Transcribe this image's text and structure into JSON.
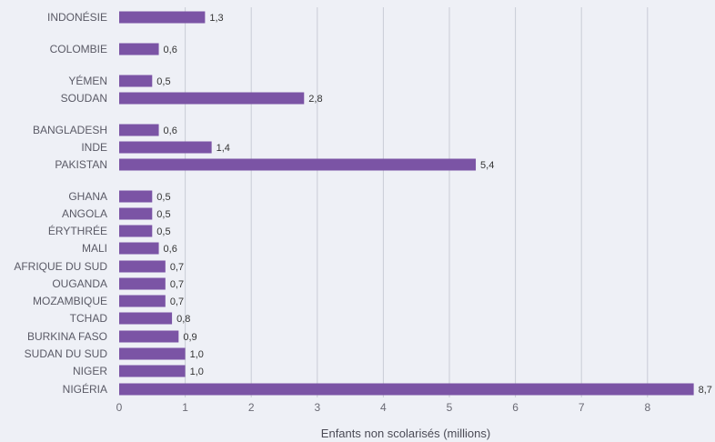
{
  "colors": {
    "bar": "#7b54a5",
    "background": "#eef0f6",
    "grid": "#c9ccd6"
  },
  "chart_data": {
    "type": "bar",
    "orientation": "horizontal",
    "xlabel": "Enfants non scolarisés (millions)",
    "xlim": [
      0,
      8.8
    ],
    "xticks": [
      "0",
      "1",
      "2",
      "3",
      "4",
      "5",
      "6",
      "7",
      "8"
    ],
    "grid": "vertical",
    "items": [
      {
        "category": "INDONÉSIE",
        "value": 1.3,
        "label": "1,3"
      },
      {
        "category": "COLOMBIE",
        "value": 0.6,
        "label": "0,6"
      },
      {
        "category": "YÉMEN",
        "value": 0.5,
        "label": "0,5"
      },
      {
        "category": "SOUDAN",
        "value": 2.8,
        "label": "2,8"
      },
      {
        "category": "BANGLADESH",
        "value": 0.6,
        "label": "0,6"
      },
      {
        "category": "INDE",
        "value": 1.4,
        "label": "1,4"
      },
      {
        "category": "PAKISTAN",
        "value": 5.4,
        "label": "5,4"
      },
      {
        "category": "GHANA",
        "value": 0.5,
        "label": "0,5"
      },
      {
        "category": "ANGOLA",
        "value": 0.5,
        "label": "0,5"
      },
      {
        "category": "ÉRYTHRÉE",
        "value": 0.5,
        "label": "0,5"
      },
      {
        "category": "MALI",
        "value": 0.6,
        "label": "0,6"
      },
      {
        "category": "AFRIQUE DU SUD",
        "value": 0.7,
        "label": "0,7"
      },
      {
        "category": "OUGANDA",
        "value": 0.7,
        "label": "0,7"
      },
      {
        "category": "MOZAMBIQUE",
        "value": 0.7,
        "label": "0,7"
      },
      {
        "category": "TCHAD",
        "value": 0.8,
        "label": "0,8"
      },
      {
        "category": "BURKINA FASO",
        "value": 0.9,
        "label": "0,9"
      },
      {
        "category": "SUDAN DU SUD",
        "value": 1.0,
        "label": "1,0"
      },
      {
        "category": "NIGER",
        "value": 1.0,
        "label": "1,0"
      },
      {
        "category": "NIGÉRIA",
        "value": 8.7,
        "label": "8,7"
      }
    ]
  }
}
